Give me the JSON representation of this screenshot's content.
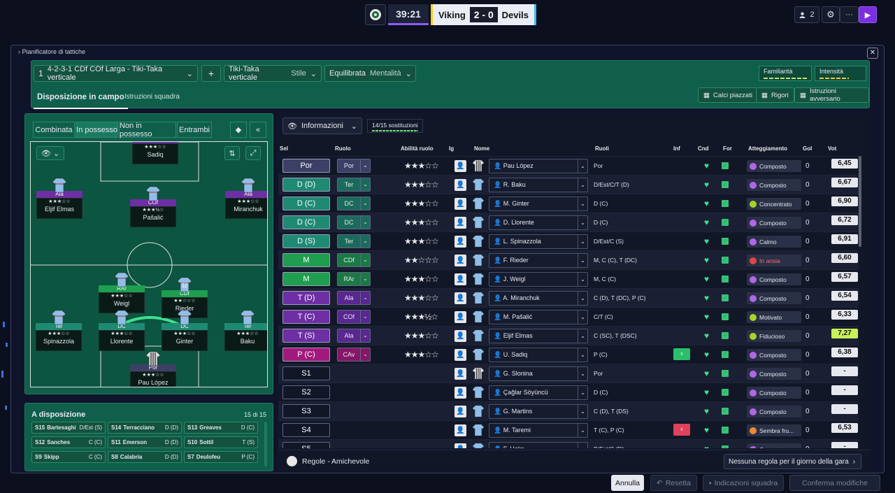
{
  "match": {
    "clock": "39:21",
    "home": "Viking",
    "score": "2 - 0",
    "away": "Devils"
  },
  "topright": {
    "people_count": "2",
    "settings_icon": "gear-icon",
    "more": "···",
    "play_icon": "play-icon"
  },
  "panel": {
    "title": "Pianificatore di tattiche",
    "formation_num": "1",
    "formation": "4-2-3-1 CDf COf Larga - Tiki-Taka verticale",
    "add": "+",
    "style_value": "Tiki-Taka verticale",
    "style_label": "Stile",
    "mentality_value": "Equilibrata",
    "mentality_label": "Mentalità",
    "familiarity": "Familiarità",
    "intensity": "Intensità",
    "tab_active": "Disposizione in campo",
    "tab_other": "Istruzioni squadra",
    "btn_set_pieces": "Calci piazzati",
    "btn_penalties": "Rigori",
    "btn_opposition": "Istruzioni avversario"
  },
  "pitch_modes": [
    "Combinata",
    "In possesso",
    "Non in possesso",
    "Entrambi"
  ],
  "pitch_players": [
    {
      "role": "CAv",
      "name": "Sadiq",
      "stars": "★★★☆☆"
    },
    {
      "role": "Ala",
      "name": "Eljif Elmas",
      "stars": "★★★☆☆"
    },
    {
      "role": "COf",
      "name": "Pašalić",
      "stars": "★★★½☆"
    },
    {
      "role": "Ala",
      "name": "Miranchuk",
      "stars": "★★★☆☆"
    },
    {
      "role": "RAr",
      "name": "Weigl",
      "stars": "★★★☆☆"
    },
    {
      "role": "CDf",
      "name": "Rieder",
      "stars": "★★☆☆☆",
      "num": "32"
    },
    {
      "role": "Ter",
      "name": "Spinazzola",
      "stars": "★★★☆☆"
    },
    {
      "role": "DC",
      "name": "Llorente",
      "stars": "★★★☆☆"
    },
    {
      "role": "DC",
      "name": "Ginter",
      "stars": "★★★☆☆"
    },
    {
      "role": "Ter",
      "name": "Baku",
      "stars": "★★★☆☆"
    },
    {
      "role": "Por",
      "name": "Pau López",
      "stars": "★★★☆☆"
    }
  ],
  "available": {
    "title": "A disposizione",
    "count": "15 di 15",
    "rows": [
      [
        {
          "n": "S15",
          "name": "Bartesaghi",
          "pos": "D/Est (S)"
        },
        {
          "n": "S14",
          "name": "Terracciano",
          "pos": "D (D)"
        },
        {
          "n": "S13",
          "name": "Greaves",
          "pos": "D (C)"
        }
      ],
      [
        {
          "n": "S12",
          "name": "Sanches",
          "pos": "C (C)"
        },
        {
          "n": "S11",
          "name": "Emerson",
          "pos": "D (D)"
        },
        {
          "n": "S10",
          "name": "Sottil",
          "pos": "T (S)"
        }
      ],
      [
        {
          "n": "S9",
          "name": "Skipp",
          "pos": "C (C)"
        },
        {
          "n": "S8",
          "name": "Calabria",
          "pos": "D (D)"
        },
        {
          "n": "S7",
          "name": "Deulofeu",
          "pos": "P (C)"
        }
      ]
    ]
  },
  "table": {
    "info_label": "Informazioni",
    "subs": "14/15 sostituzioni",
    "headers": [
      "Sel",
      "Ruolo",
      "Abilità ruolo",
      "Ig",
      "Nome",
      "Ruoli",
      "Inf",
      "Cnd",
      "For",
      "Atteggiamento",
      "Gol",
      "Vot"
    ],
    "rows": [
      {
        "sel": "Por",
        "role": "Por",
        "stars": "★★★☆☆",
        "name": "Pau López",
        "ruoli": "Por",
        "att": "Composto",
        "attColor": "#b266e8",
        "gol": "0",
        "vot": "6,45"
      },
      {
        "sel": "D (D)",
        "role": "Ter",
        "stars": "★★★☆☆",
        "name": "R. Baku",
        "ruoli": "D/Est/C/T (D)",
        "att": "Composto",
        "attColor": "#b266e8",
        "gol": "0",
        "vot": "6,67"
      },
      {
        "sel": "D (C)",
        "role": "DC",
        "stars": "★★★☆☆",
        "name": "M. Ginter",
        "ruoli": "D (C)",
        "att": "Concentrato",
        "attColor": "#a8d42a",
        "gol": "0",
        "vot": "6,90"
      },
      {
        "sel": "D (C)",
        "role": "DC",
        "stars": "★★★☆☆",
        "name": "D. Llorente",
        "ruoli": "D (C)",
        "att": "Composto",
        "attColor": "#b266e8",
        "gol": "0",
        "vot": "6,72"
      },
      {
        "sel": "D (S)",
        "role": "Ter",
        "stars": "★★★☆☆",
        "name": "L. Spinazzola",
        "ruoli": "D/Est/C (S)",
        "att": "Calmo",
        "attColor": "#b266e8",
        "gol": "0",
        "vot": "6,91"
      },
      {
        "sel": "M",
        "role": "CDf",
        "stars": "★★☆☆☆",
        "name": "F. Rieder",
        "ruoli": "M, C (C), T (DC)",
        "att": "In ansia",
        "attColor": "#e04646",
        "gol": "0",
        "vot": "6,60"
      },
      {
        "sel": "M",
        "role": "RAr",
        "stars": "★★★☆☆",
        "name": "J. Weigl",
        "ruoli": "M, C (C)",
        "att": "Composto",
        "attColor": "#b266e8",
        "gol": "0",
        "vot": "6,57"
      },
      {
        "sel": "T (D)",
        "role": "Ala",
        "stars": "★★★☆☆",
        "name": "A. Miranchuk",
        "ruoli": "C (D), T (DC), P (C)",
        "att": "Composto",
        "attColor": "#b266e8",
        "gol": "0",
        "vot": "6,54"
      },
      {
        "sel": "T (C)",
        "role": "COf",
        "stars": "★★★½☆",
        "name": "M. Pašalić",
        "ruoli": "C/T (C)",
        "att": "Motivato",
        "attColor": "#a8d42a",
        "gol": "0",
        "vot": "6,33"
      },
      {
        "sel": "T (S)",
        "role": "Ala",
        "stars": "★★★☆☆",
        "name": "Eljif Elmas",
        "ruoli": "C (SC), T (DSC)",
        "att": "Fiducioso",
        "attColor": "#a8d42a",
        "gol": "0",
        "vot": "7,27"
      },
      {
        "sel": "P (C)",
        "role": "CAv",
        "stars": "★★★☆☆",
        "name": "U. Sadiq",
        "ruoli": "P (C)",
        "att": "Composto",
        "attColor": "#b266e8",
        "gol": "0",
        "vot": "6,38"
      },
      {
        "sel": "S1",
        "role": "",
        "stars": "",
        "name": "G. Slonina",
        "ruoli": "Por",
        "att": "Composto",
        "attColor": "#b266e8",
        "gol": "0",
        "vot": "-"
      },
      {
        "sel": "S2",
        "role": "",
        "stars": "",
        "name": "Çağlar Söyüncü",
        "ruoli": "D (C)",
        "att": "Composto",
        "attColor": "#b266e8",
        "gol": "0",
        "vot": "-"
      },
      {
        "sel": "S3",
        "role": "",
        "stars": "",
        "name": "G. Martins",
        "ruoli": "C (D), T (DS)",
        "att": "Composto",
        "attColor": "#b266e8",
        "gol": "0",
        "vot": "-"
      },
      {
        "sel": "S4",
        "role": "",
        "stars": "",
        "name": "M. Taremi",
        "ruoli": "T (C), P (C)",
        "att": "Sembra fru...",
        "attColor": "#f08a30",
        "gol": "0",
        "vot": "6,53"
      },
      {
        "sel": "S5",
        "role": "",
        "stars": "",
        "name": "F. Holm",
        "ruoli": "D/Est/C (D)",
        "att": "Composto",
        "attColor": "#b266e8",
        "gol": "0",
        "vot": "-"
      }
    ],
    "rules": "Regole - Amichevole",
    "rules_btn": "Nessuna regola per il giorno della gara"
  },
  "bottom": {
    "cancel": "Annulla",
    "reset": "Resetta",
    "hints": "Indicazioni squadra",
    "confirm": "Conferma modifiche"
  },
  "colors": {
    "accent": "#8a5cf0",
    "green_panel": "#0f5f4a",
    "gk": "#3c4066",
    "def": "#1f8a74",
    "mid": "#1e9e4e",
    "att": "#6d2fa3",
    "st": "#a31a7e"
  }
}
